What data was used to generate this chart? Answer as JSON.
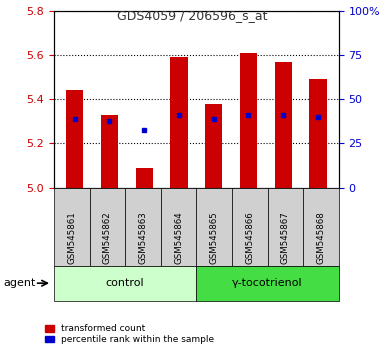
{
  "title": "GDS4059 / 206596_s_at",
  "samples": [
    "GSM545861",
    "GSM545862",
    "GSM545863",
    "GSM545864",
    "GSM545865",
    "GSM545866",
    "GSM545867",
    "GSM545868"
  ],
  "bar_heights": [
    5.44,
    5.33,
    5.09,
    5.59,
    5.38,
    5.61,
    5.57,
    5.49
  ],
  "bar_base": 5.0,
  "blue_dot_values": [
    5.31,
    5.3,
    5.26,
    5.33,
    5.31,
    5.33,
    5.33,
    5.32
  ],
  "ylim": [
    5.0,
    5.8
  ],
  "yticks_left": [
    5.0,
    5.2,
    5.4,
    5.6,
    5.8
  ],
  "yticks_right": [
    0,
    25,
    50,
    75,
    100
  ],
  "y_right_labels": [
    "0",
    "25",
    "50",
    "75",
    "100%"
  ],
  "bar_color": "#cc0000",
  "blue_color": "#0000cc",
  "ctrl_color": "#ccffcc",
  "trt_color": "#44dd44",
  "group_label_control": "control",
  "group_label_treatment": "γ-tocotrienol",
  "agent_label": "agent",
  "legend_bar_label": "transformed count",
  "legend_dot_label": "percentile rank within the sample",
  "title_color": "#333333",
  "left_axis_color": "#cc0000",
  "right_axis_color": "#0000cc"
}
